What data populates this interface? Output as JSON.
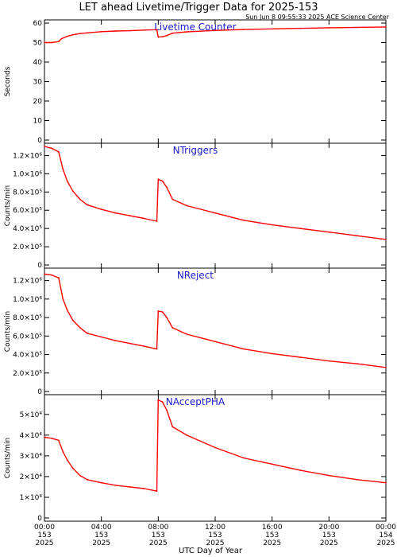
{
  "header": {
    "title": "LET ahead Livetime/Trigger Data for 2025-153",
    "timestamp": "Sun Jun  8 09:55:33 2025 ACE Science Center"
  },
  "chart_data": [
    {
      "type": "line",
      "name": "Livetime Counter",
      "ylabel": "Seconds",
      "ylim": [
        0,
        60
      ],
      "yticks": [
        0,
        10,
        20,
        30,
        40,
        50,
        60
      ],
      "ytick_labels": [
        "0",
        "10",
        "20",
        "30",
        "40",
        "50",
        "60"
      ],
      "series_color": "#ff0000",
      "label_color": "#1a1acc",
      "x_hours": [
        0,
        0.5,
        1.0,
        1.2,
        1.6,
        2.0,
        2.5,
        3.0,
        4.0,
        5.0,
        6.0,
        7.0,
        7.9,
        8.0,
        8.3,
        8.6,
        9.0,
        10.0,
        12.0,
        14.0,
        16.0,
        18.0,
        20.0,
        22.0,
        24.0
      ],
      "values": [
        50.0,
        50.0,
        50.5,
        52.0,
        53.2,
        54.0,
        54.6,
        55.0,
        55.6,
        55.9,
        56.1,
        56.4,
        56.6,
        52.8,
        53.0,
        53.6,
        54.8,
        55.5,
        56.2,
        56.7,
        57.0,
        57.3,
        57.6,
        57.8,
        58.0
      ]
    },
    {
      "type": "line",
      "name": "NTriggers",
      "ylabel": "Counts/min",
      "ylim": [
        0,
        1300000
      ],
      "yticks": [
        0,
        200000,
        400000,
        600000,
        800000,
        1000000,
        1200000
      ],
      "ytick_labels": [
        "0",
        "2.0×10⁵",
        "4.0×10⁵",
        "6.0×10⁵",
        "8.0×10⁵",
        "1.0×10⁶",
        "1.2×10⁶"
      ],
      "series_color": "#ff0000",
      "label_color": "#1a1acc",
      "x_hours": [
        0,
        0.5,
        1.0,
        1.3,
        1.6,
        2.0,
        2.5,
        3.0,
        4.0,
        5.0,
        6.0,
        7.0,
        7.9,
        8.0,
        8.3,
        8.6,
        9.0,
        10.0,
        12.0,
        14.0,
        16.0,
        18.0,
        20.0,
        22.0,
        24.0
      ],
      "values": [
        1300000,
        1280000,
        1240000,
        1050000,
        920000,
        810000,
        720000,
        660000,
        610000,
        570000,
        540000,
        510000,
        480000,
        940000,
        920000,
        850000,
        720000,
        650000,
        570000,
        490000,
        440000,
        400000,
        360000,
        320000,
        280000
      ]
    },
    {
      "type": "line",
      "name": "NReject",
      "ylabel": "Counts/min",
      "ylim": [
        0,
        1300000
      ],
      "yticks": [
        0,
        200000,
        400000,
        600000,
        800000,
        1000000,
        1200000
      ],
      "ytick_labels": [
        "0",
        "2.0×10⁵",
        "4.0×10⁵",
        "6.0×10⁵",
        "8.0×10⁵",
        "1.0×10⁶",
        "1.2×10⁶"
      ],
      "series_color": "#ff0000",
      "label_color": "#1a1acc",
      "x_hours": [
        0,
        0.5,
        1.0,
        1.3,
        1.6,
        2.0,
        2.5,
        3.0,
        4.0,
        5.0,
        6.0,
        7.0,
        7.9,
        8.0,
        8.3,
        8.6,
        9.0,
        10.0,
        12.0,
        14.0,
        16.0,
        18.0,
        20.0,
        22.0,
        24.0
      ],
      "values": [
        1270000,
        1260000,
        1230000,
        1000000,
        880000,
        770000,
        690000,
        630000,
        590000,
        550000,
        520000,
        490000,
        460000,
        870000,
        860000,
        800000,
        690000,
        620000,
        540000,
        460000,
        410000,
        370000,
        330000,
        300000,
        260000
      ]
    },
    {
      "type": "line",
      "name": "NAcceptPHA",
      "ylabel": "Counts/min",
      "ylim": [
        0,
        58000
      ],
      "yticks": [
        0,
        10000,
        20000,
        30000,
        40000,
        50000
      ],
      "ytick_labels": [
        "0",
        "1×10⁴",
        "2×10⁴",
        "3×10⁴",
        "4×10⁴",
        "5×10⁴"
      ],
      "series_color": "#ff0000",
      "label_color": "#1a1acc",
      "x_hours": [
        0,
        0.5,
        1.0,
        1.3,
        1.6,
        2.0,
        2.5,
        3.0,
        4.0,
        5.0,
        6.0,
        7.0,
        7.9,
        8.0,
        8.3,
        8.6,
        9.0,
        10.0,
        12.0,
        14.0,
        16.0,
        18.0,
        20.0,
        22.0,
        24.0
      ],
      "values": [
        39000,
        38500,
        37500,
        32000,
        28000,
        24000,
        20500,
        18500,
        17000,
        15800,
        15000,
        14200,
        13000,
        57000,
        56000,
        52000,
        44000,
        40000,
        34000,
        29000,
        26000,
        23000,
        20500,
        18500,
        17000
      ]
    }
  ],
  "x_axis": {
    "xlim_hours": [
      0,
      24
    ],
    "ticks": [
      {
        "hour": 0,
        "time": "00:00",
        "doy": "153",
        "year": "2025"
      },
      {
        "hour": 4,
        "time": "04:00",
        "doy": "153",
        "year": "2025"
      },
      {
        "hour": 8,
        "time": "08:00",
        "doy": "153",
        "year": "2025"
      },
      {
        "hour": 12,
        "time": "12:00",
        "doy": "153",
        "year": "2025"
      },
      {
        "hour": 16,
        "time": "16:00",
        "doy": "153",
        "year": "2025"
      },
      {
        "hour": 20,
        "time": "20:00",
        "doy": "153",
        "year": "2025"
      },
      {
        "hour": 24,
        "time": "00:00",
        "doy": "154",
        "year": "2025"
      }
    ],
    "xlabel": "UTC Day of Year"
  }
}
